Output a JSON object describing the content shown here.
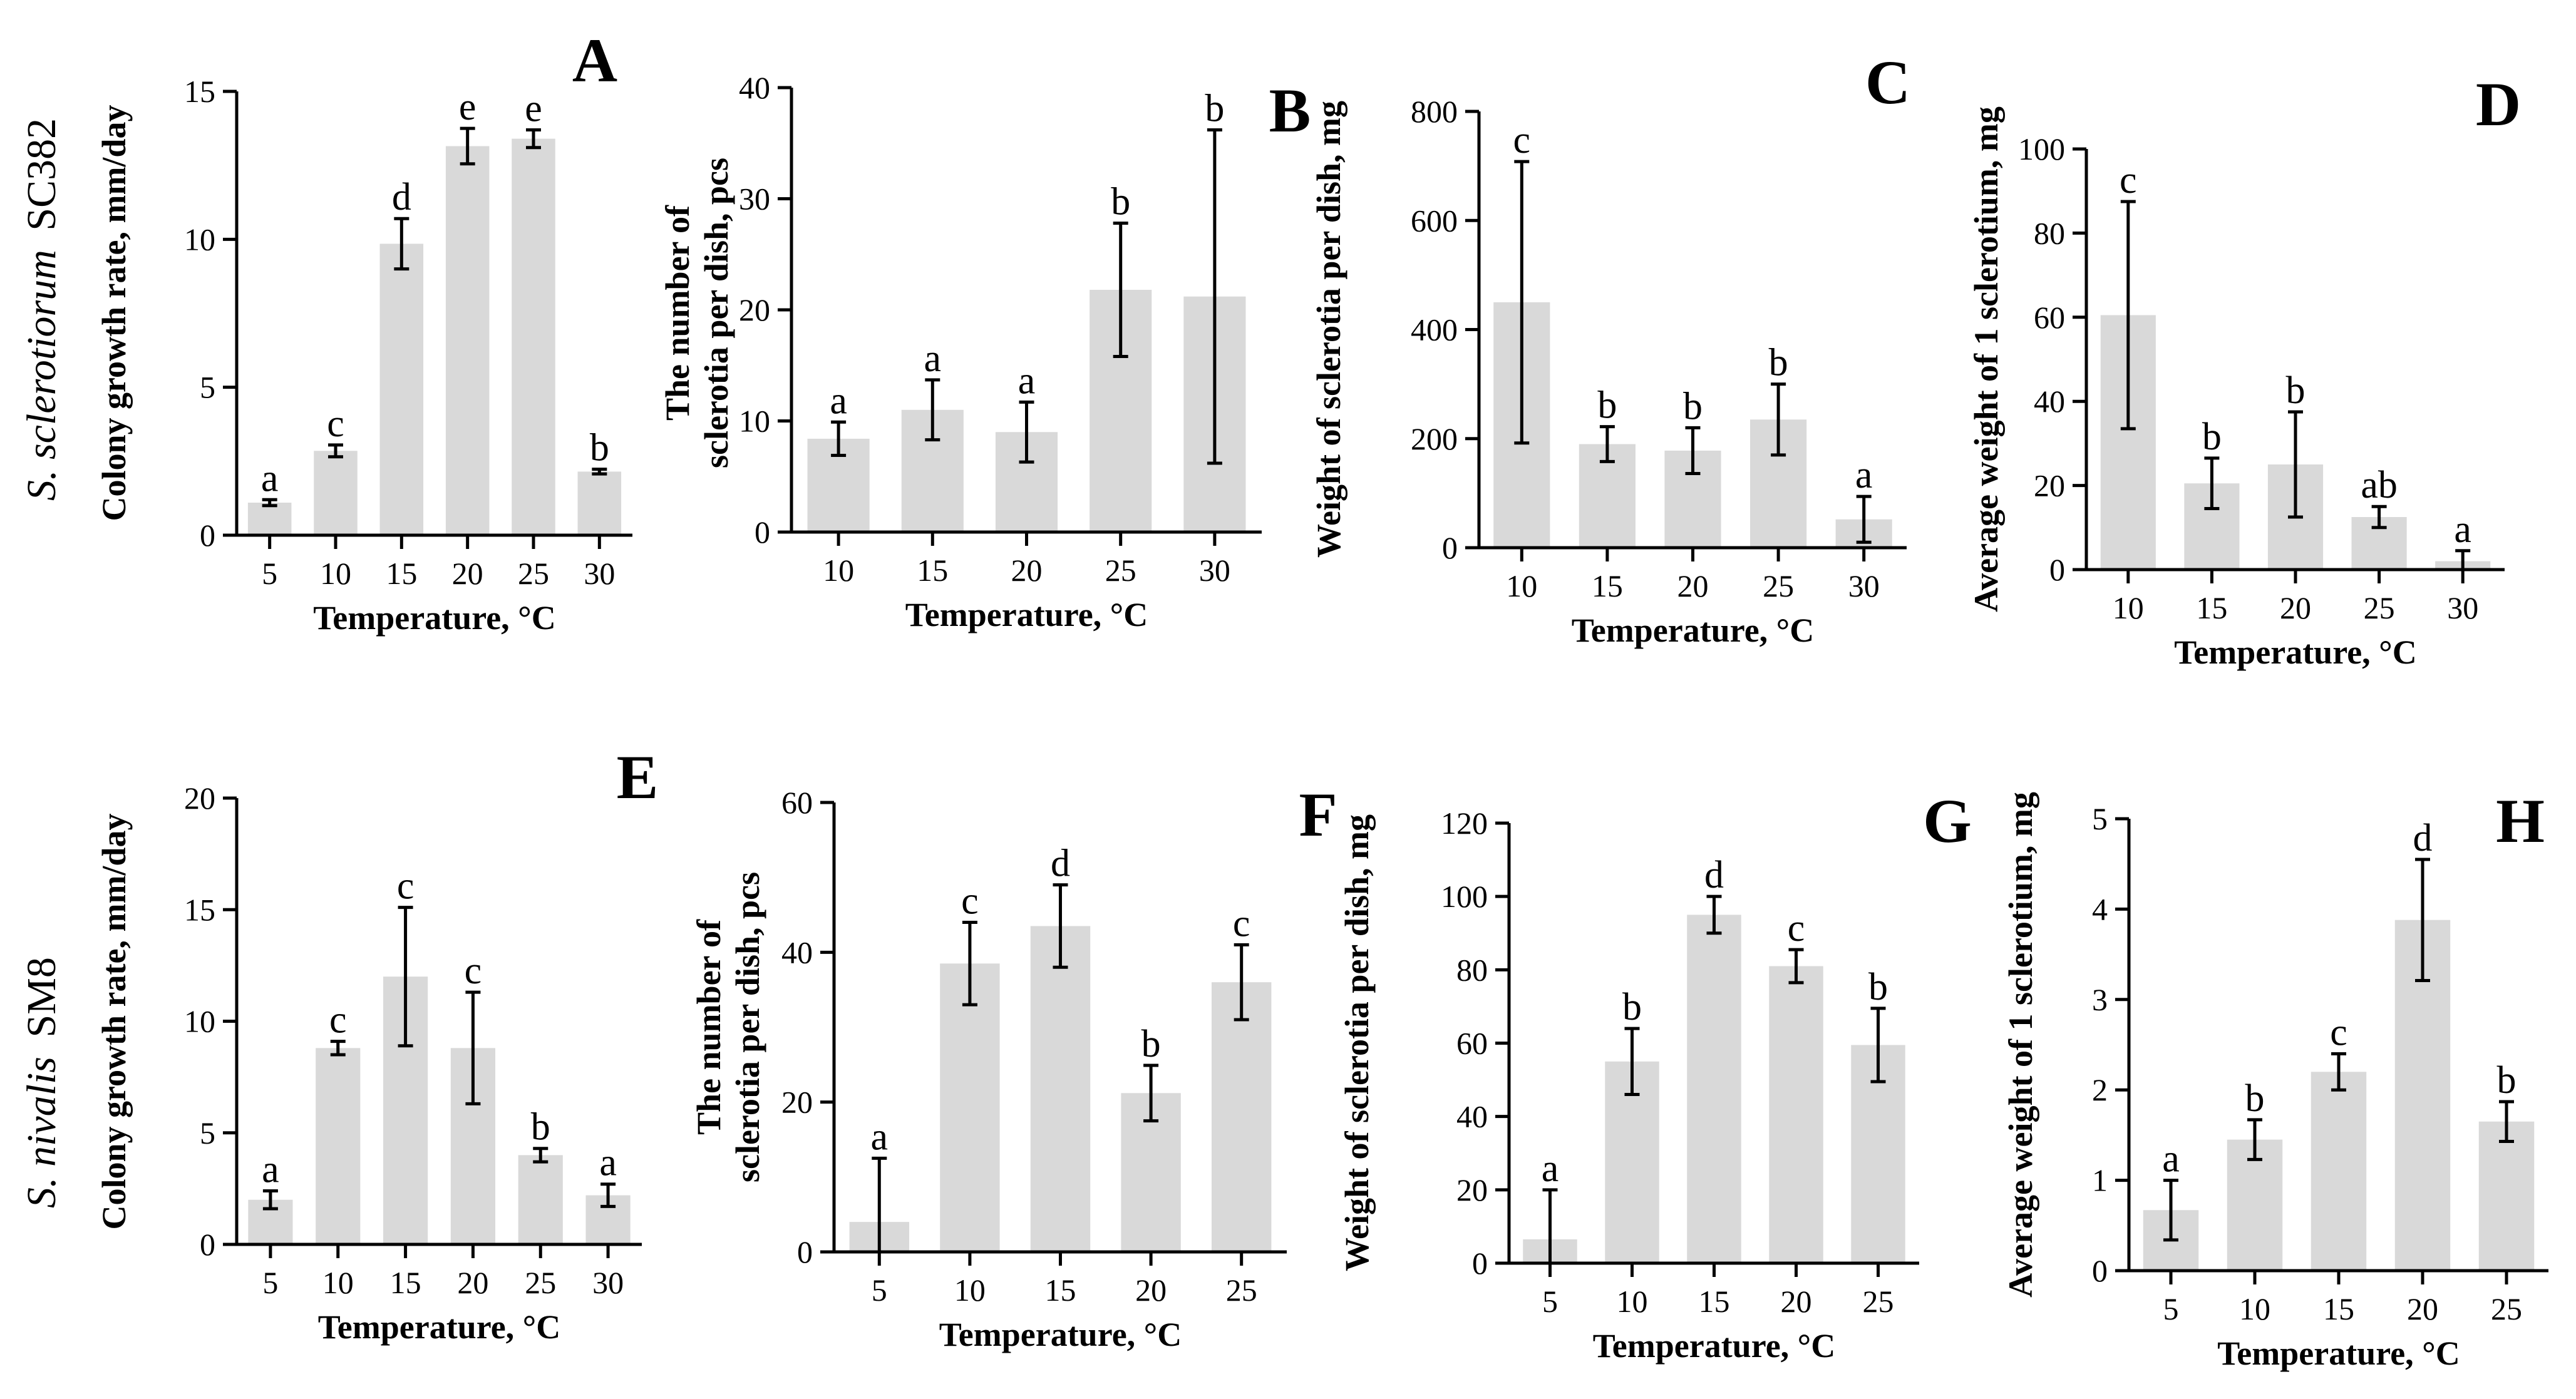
{
  "row_labels": [
    {
      "species": "S. sclerotiorum",
      "strain": "SC382"
    },
    {
      "species": "S. nivalis",
      "strain": "SM8"
    }
  ],
  "chart_data": [
    {
      "panel": "A",
      "type": "bar",
      "xlabel": "Temperature, °C",
      "ylabel": "Colony growth rate, mm/day",
      "ylim": [
        0,
        15
      ],
      "yticks": [
        0,
        5,
        10,
        15
      ],
      "categories": [
        "5",
        "10",
        "15",
        "20",
        "25",
        "30"
      ],
      "values": [
        1.1,
        2.85,
        9.85,
        13.15,
        13.4,
        2.15
      ],
      "errors": [
        0.1,
        0.2,
        0.85,
        0.6,
        0.3,
        0.08
      ],
      "letters": [
        "a",
        "c",
        "d",
        "e",
        "e",
        "b"
      ]
    },
    {
      "panel": "B",
      "type": "bar",
      "xlabel": "Temperature, °C",
      "ylabel_lines": [
        "The number of",
        "sclerotia per dish, pcs"
      ],
      "ylim": [
        0,
        40
      ],
      "yticks": [
        0,
        10,
        20,
        30,
        40
      ],
      "categories": [
        "10",
        "15",
        "20",
        "25",
        "30"
      ],
      "values": [
        8.4,
        11,
        9,
        21.8,
        21.2
      ],
      "errors": [
        1.5,
        2.7,
        2.7,
        6,
        15
      ],
      "letters": [
        "a",
        "a",
        "a",
        "b",
        "b"
      ]
    },
    {
      "panel": "C",
      "type": "bar",
      "xlabel": "Temperature, °C",
      "ylabel": "Weight of sclerotia per dish, mg",
      "ylim": [
        0,
        800
      ],
      "yticks": [
        0,
        200,
        400,
        600,
        800
      ],
      "categories": [
        "10",
        "15",
        "20",
        "25",
        "30"
      ],
      "values": [
        450,
        190,
        178,
        235,
        52
      ],
      "errors": [
        258,
        32,
        42,
        65,
        42
      ],
      "letters": [
        "c",
        "b",
        "b",
        "b",
        "a"
      ]
    },
    {
      "panel": "D",
      "type": "bar",
      "xlabel": "Temperature, °C",
      "ylabel": "Average weight of 1 sclerotium, mg",
      "ylim": [
        0,
        100
      ],
      "yticks": [
        0,
        20,
        40,
        60,
        80,
        100
      ],
      "categories": [
        "10",
        "15",
        "20",
        "25",
        "30"
      ],
      "values": [
        60.5,
        20.5,
        25,
        12.5,
        2
      ],
      "errors": [
        27,
        6,
        12.5,
        2.5,
        2.5
      ],
      "letters": [
        "c",
        "b",
        "b",
        "ab",
        "a"
      ]
    },
    {
      "panel": "E",
      "type": "bar",
      "xlabel": "Temperature, °C",
      "ylabel": "Colony growth rate, mm/day",
      "ylim": [
        0,
        20
      ],
      "yticks": [
        0,
        5,
        10,
        15,
        20
      ],
      "categories": [
        "5",
        "10",
        "15",
        "20",
        "25",
        "30"
      ],
      "values": [
        2,
        8.8,
        12,
        8.8,
        4,
        2.2
      ],
      "errors": [
        0.4,
        0.3,
        3.1,
        2.5,
        0.3,
        0.5
      ],
      "letters": [
        "a",
        "c",
        "c",
        "c",
        "b",
        "a"
      ]
    },
    {
      "panel": "F",
      "type": "bar",
      "xlabel": "Temperature, °C",
      "ylabel_lines": [
        "The number of",
        "sclerotia per dish, pcs"
      ],
      "ylim": [
        0,
        60
      ],
      "yticks": [
        0,
        20,
        40,
        60
      ],
      "categories": [
        "5",
        "10",
        "15",
        "20",
        "25"
      ],
      "values": [
        4,
        38.5,
        43.5,
        21.2,
        36
      ],
      "errors": [
        8.5,
        5.5,
        5.5,
        3.7,
        5
      ],
      "letters": [
        "a",
        "c",
        "d",
        "b",
        "c"
      ]
    },
    {
      "panel": "G",
      "type": "bar",
      "xlabel": "Temperature, °C",
      "ylabel": "Weight of sclerotia per dish, mg",
      "ylim": [
        0,
        120
      ],
      "yticks": [
        0,
        20,
        40,
        60,
        80,
        100,
        120
      ],
      "categories": [
        "5",
        "10",
        "15",
        "20",
        "25"
      ],
      "values": [
        6.5,
        55,
        95,
        81,
        59.5
      ],
      "errors": [
        13.5,
        9,
        5,
        4.5,
        10
      ],
      "letters": [
        "a",
        "b",
        "d",
        "c",
        "b"
      ]
    },
    {
      "panel": "H",
      "type": "bar",
      "xlabel": "Temperature, °C",
      "ylabel": "Average weight of 1 sclerotium, mg",
      "ylim": [
        0,
        5
      ],
      "yticks": [
        0,
        1,
        2,
        3,
        4,
        5
      ],
      "categories": [
        "5",
        "10",
        "15",
        "20",
        "25"
      ],
      "values": [
        0.67,
        1.45,
        2.2,
        3.88,
        1.65
      ],
      "errors": [
        0.33,
        0.22,
        0.2,
        0.67,
        0.22
      ],
      "letters": [
        "a",
        "b",
        "c",
        "d",
        "b"
      ]
    }
  ]
}
